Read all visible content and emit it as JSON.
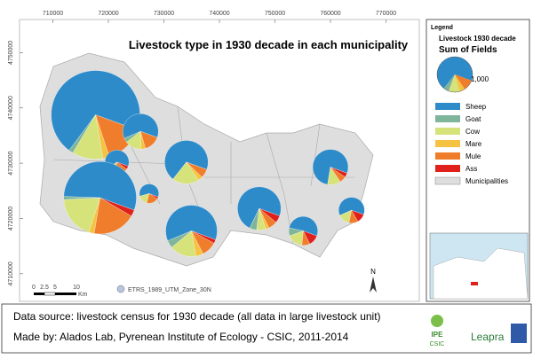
{
  "map": {
    "title": "Livestock type in 1930 decade in each municipality",
    "xlim": [
      704000,
      776000
    ],
    "ylim": [
      4705000,
      4756000
    ],
    "xticks": [
      710000,
      720000,
      730000,
      740000,
      750000,
      760000,
      770000
    ],
    "yticks": [
      4710000,
      4720000,
      4730000,
      4740000,
      4750000
    ],
    "series": [
      {
        "name": "Sheep",
        "color": "#2e8bc9"
      },
      {
        "name": "Goat",
        "color": "#7fb59b"
      },
      {
        "name": "Cow",
        "color": "#d6e27a"
      },
      {
        "name": "Mare",
        "color": "#f5c342"
      },
      {
        "name": "Mule",
        "color": "#ef7d2c"
      },
      {
        "name": "Ass",
        "color": "#e0201b"
      }
    ],
    "pies": [
      {
        "x": 717700,
        "y": 4738750,
        "values": [
          4400,
          100,
          700,
          150,
          900,
          0
        ]
      },
      {
        "x": 725800,
        "y": 4735750,
        "values": [
          620,
          40,
          150,
          40,
          150,
          0
        ]
      },
      {
        "x": 721540,
        "y": 4730200,
        "values": [
          300,
          0,
          60,
          0,
          80,
          20
        ]
      },
      {
        "x": 718500,
        "y": 4723750,
        "values": [
          2300,
          60,
          800,
          100,
          800,
          120
        ]
      },
      {
        "x": 727340,
        "y": 4724500,
        "values": [
          180,
          0,
          50,
          0,
          60,
          10
        ]
      },
      {
        "x": 734050,
        "y": 4730200,
        "values": [
          1050,
          0,
          300,
          50,
          100,
          0
        ]
      },
      {
        "x": 734960,
        "y": 4717750,
        "values": [
          1300,
          100,
          350,
          100,
          200,
          50
        ]
      },
      {
        "x": 747170,
        "y": 4721800,
        "values": [
          1100,
          80,
          100,
          40,
          100,
          80
        ]
      },
      {
        "x": 760000,
        "y": 4729300,
        "values": [
          780,
          0,
          120,
          0,
          60,
          40
        ]
      },
      {
        "x": 755100,
        "y": 4717750,
        "values": [
          350,
          60,
          120,
          0,
          60,
          80
        ]
      },
      {
        "x": 763800,
        "y": 4721500,
        "values": [
          330,
          0,
          80,
          0,
          60,
          60
        ]
      }
    ],
    "scale_labels": [
      "0",
      "2.5",
      "5",
      "10",
      "Km"
    ],
    "projection": "ETRS_1989_UTM_Zone_30N",
    "north": "N"
  },
  "legend": {
    "title": "Legend",
    "layer": "Livestock  1930 decade",
    "field": "Sum of Fields",
    "reference": {
      "value": 1000,
      "label": "1,000"
    },
    "municipalities": "Municipalities"
  },
  "footer": {
    "source": "Data source:  livestock census for 1930 decade (all data in large livestock unit)",
    "credit": "Made by: Alados Lab, Pyrenean Institute of Ecology - CSIC, 2011-2014",
    "logos": [
      "IPE",
      "CSIC",
      "Leapra"
    ]
  }
}
